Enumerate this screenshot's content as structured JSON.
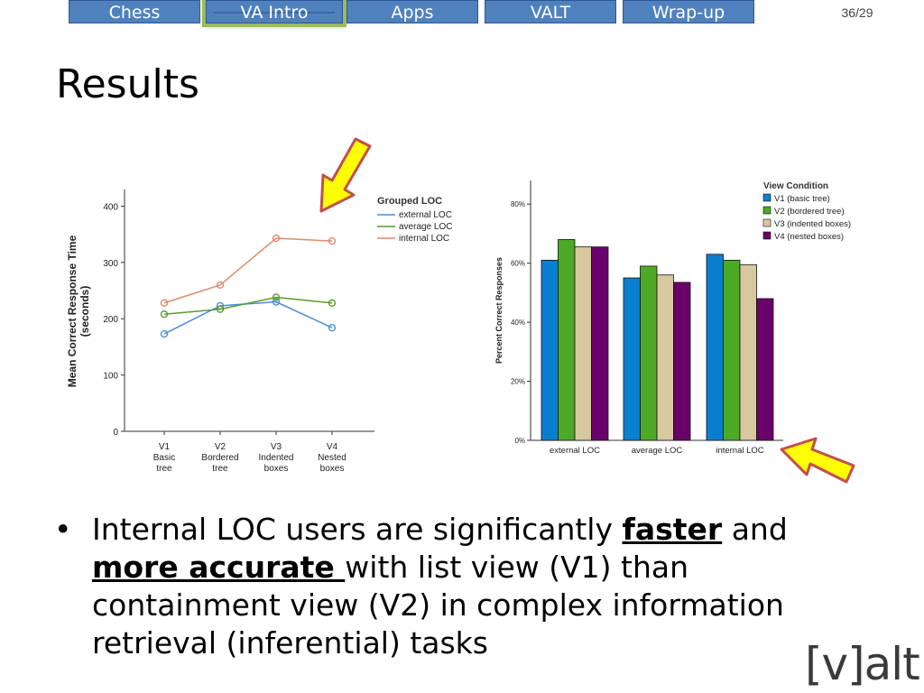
{
  "nav": {
    "tabs": [
      {
        "label": "Chess",
        "active": false
      },
      {
        "label": "VA Intro",
        "active": true
      },
      {
        "label": "Apps",
        "active": false
      },
      {
        "label": "VALT",
        "active": false
      },
      {
        "label": "Wrap-up",
        "active": false
      }
    ],
    "page_number": "36/29"
  },
  "slide": {
    "title": "Results",
    "bullet": {
      "part1": "Internal LOC users are significantly ",
      "em1": "faster",
      "part2": " and ",
      "em2": "more accurate ",
      "part3": "with list view (V1) than containment view (V2) in complex information retrieval (inferential) tasks"
    },
    "logo": "[v]alt"
  },
  "colors": {
    "tab": "#4f81bd",
    "arrow_fill": "#ffff00",
    "arrow_stroke": "#c0504d"
  },
  "chart_data": [
    {
      "type": "line",
      "title": "",
      "ylabel": "Mean Correct Response Time (seconds)",
      "xlabel": "",
      "ylim": [
        0,
        420
      ],
      "yticks": [
        0,
        100,
        200,
        300,
        400
      ],
      "categories": [
        "V1\nBasic tree",
        "V2\nBordered tree",
        "V3\nIndented boxes",
        "V4\nNested boxes"
      ],
      "legend_title": "Grouped LOC",
      "legend_position": "top-right",
      "series": [
        {
          "name": "external LOC",
          "color": "#4a90d9",
          "values": [
            173,
            223,
            230,
            184
          ]
        },
        {
          "name": "average LOC",
          "color": "#5a9a2a",
          "values": [
            208,
            217,
            238,
            228
          ]
        },
        {
          "name": "internal LOC",
          "color": "#e08a6a",
          "values": [
            228,
            260,
            343,
            338
          ]
        }
      ]
    },
    {
      "type": "bar",
      "title": "",
      "ylabel": "Percent Correct Responses",
      "xlabel": "",
      "ylim": [
        0,
        0.88
      ],
      "yticks": [
        "0%",
        "20%",
        "40%",
        "60%",
        "80%"
      ],
      "categories": [
        "external LOC",
        "average LOC",
        "internal LOC"
      ],
      "legend_title": "View Condition",
      "legend_position": "top-right",
      "series": [
        {
          "name": "V1 (basic tree)",
          "color": "#0a7fd0",
          "values": [
            0.61,
            0.55,
            0.63
          ]
        },
        {
          "name": "V2 (bordered tree)",
          "color": "#4caa26",
          "values": [
            0.68,
            0.59,
            0.61
          ]
        },
        {
          "name": "V3 (indented boxes)",
          "color": "#d8c8a0",
          "values": [
            0.655,
            0.56,
            0.595
          ]
        },
        {
          "name": "V4 (nested boxes)",
          "color": "#6a006a",
          "values": [
            0.655,
            0.535,
            0.48
          ]
        }
      ]
    }
  ]
}
